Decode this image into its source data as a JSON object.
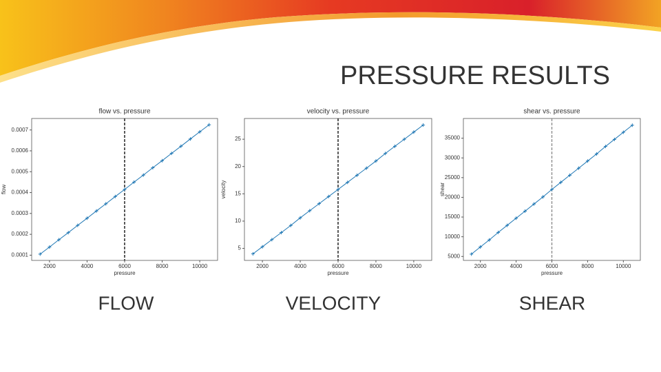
{
  "title": "PRESSURE RESULTS",
  "captions": [
    "FLOW",
    "VELOCITY",
    "SHEAR"
  ],
  "chart_data": [
    {
      "type": "line",
      "title": "flow vs. pressure",
      "x_label": "pressure",
      "y_label": "flow",
      "color": "#1f77b4",
      "x": [
        1500,
        2000,
        2500,
        3000,
        3500,
        4000,
        4500,
        5000,
        5500,
        6000,
        6500,
        7000,
        7500,
        8000,
        8500,
        9000,
        9500,
        10000,
        10500
      ],
      "values": [
        0.000105,
        0.000139,
        0.000174,
        0.000208,
        0.000243,
        0.000277,
        0.000312,
        0.000346,
        0.000381,
        0.000415,
        0.00045,
        0.000484,
        0.000519,
        0.000553,
        0.000588,
        0.000622,
        0.000657,
        0.000691,
        0.000725
      ],
      "xlim": [
        1050,
        10950
      ],
      "xticks": [
        2000,
        4000,
        6000,
        8000,
        10000
      ],
      "ylim": [
        7.5e-05,
        0.000755
      ],
      "yticks": [
        0.0001,
        0.0002,
        0.0003,
        0.0004,
        0.0005,
        0.0006,
        0.0007
      ],
      "vline": 6000,
      "vline_color": "#000000"
    },
    {
      "type": "line",
      "title": "velocity vs. pressure",
      "x_label": "pressure",
      "y_label": "velocity",
      "color": "#1f77b4",
      "x": [
        1500,
        2000,
        2500,
        3000,
        3500,
        4000,
        4500,
        5000,
        5500,
        6000,
        6500,
        7000,
        7500,
        8000,
        8500,
        9000,
        9500,
        10000,
        10500
      ],
      "values": [
        4,
        5.3,
        6.6,
        7.9,
        9.2,
        10.6,
        11.9,
        13.2,
        14.5,
        15.8,
        17.1,
        18.4,
        19.7,
        21,
        22.4,
        23.7,
        25,
        26.3,
        27.6
      ],
      "xlim": [
        1050,
        10950
      ],
      "xticks": [
        2000,
        4000,
        6000,
        8000,
        10000
      ],
      "ylim": [
        2.8,
        28.8
      ],
      "yticks": [
        5,
        10,
        15,
        20,
        25
      ],
      "vline": 6000,
      "vline_color": "#000000"
    },
    {
      "type": "line",
      "title": "shear vs. pressure",
      "x_label": "pressure",
      "y_label": "shear",
      "color": "#1f77b4",
      "x": [
        1500,
        2000,
        2500,
        3000,
        3500,
        4000,
        4500,
        5000,
        5500,
        6000,
        6500,
        7000,
        7500,
        8000,
        8500,
        9000,
        9500,
        10000,
        10500
      ],
      "values": [
        5600,
        7400,
        9200,
        11100,
        12900,
        14700,
        16500,
        18300,
        20100,
        22000,
        23800,
        25600,
        27400,
        29200,
        31000,
        32900,
        34700,
        36500,
        38300
      ],
      "xlim": [
        1050,
        10950
      ],
      "xticks": [
        2000,
        4000,
        6000,
        8000,
        10000
      ],
      "ylim": [
        4000,
        40000
      ],
      "yticks": [
        5000,
        10000,
        15000,
        20000,
        25000,
        30000,
        35000
      ],
      "vline": 6000,
      "vline_color": "#888888"
    }
  ]
}
